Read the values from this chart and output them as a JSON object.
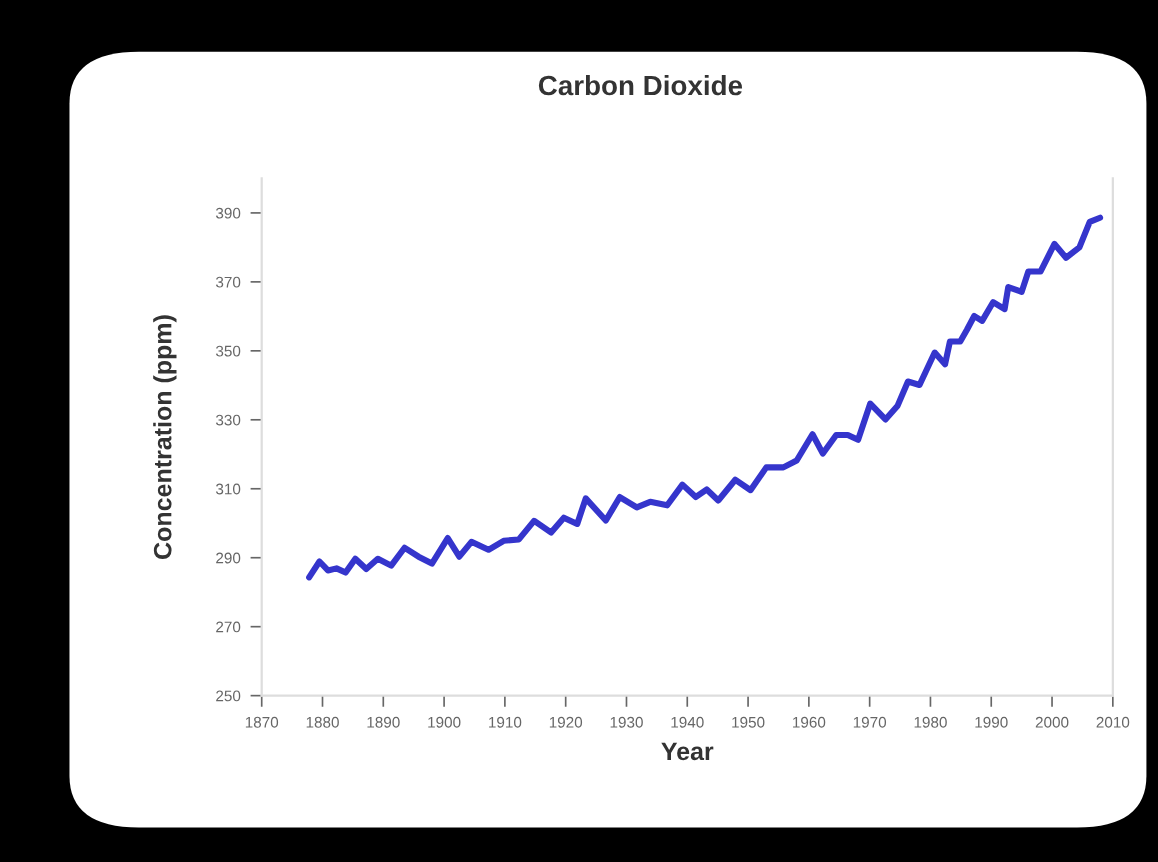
{
  "chart_data": {
    "type": "line",
    "title": "Carbon Dioxide",
    "xlabel": "Year",
    "ylabel": "Concentration (ppm)",
    "x": [
      1877.8,
      1879.5,
      1880.9,
      1882.3,
      1883.8,
      1885.4,
      1887.2,
      1889.1,
      1891.3,
      1893.5,
      1895.8,
      1898.0,
      1900.6,
      1902.5,
      1904.5,
      1907.3,
      1909.8,
      1912.3,
      1914.8,
      1917.6,
      1919.7,
      1921.9,
      1923.3,
      1926.6,
      1928.9,
      1931.7,
      1933.9,
      1936.7,
      1939.2,
      1941.4,
      1943.2,
      1945.1,
      1947.9,
      1950.4,
      1953.0,
      1955.8,
      1958.0,
      1960.6,
      1962.3,
      1964.5,
      1966.4,
      1968.1,
      1970.1,
      1972.6,
      1974.6,
      1976.3,
      1978.2,
      1980.7,
      1982.4,
      1983.2,
      1984.9,
      1986.0,
      1987.2,
      1988.5,
      1990.3,
      1992.2,
      1992.8,
      1995.0,
      1996.1,
      1998.1,
      2000.4,
      2002.3,
      2004.5,
      2006.2,
      2007.9
    ],
    "series": [
      {
        "color": "#3535cc",
        "values": [
          284.3,
          288.9,
          286.3,
          286.9,
          285.7,
          289.7,
          286.7,
          289.7,
          287.7,
          292.9,
          290.3,
          288.3,
          295.7,
          290.3,
          294.6,
          292.3,
          294.9,
          295.3,
          300.7,
          297.3,
          301.6,
          299.8,
          307.2,
          300.8,
          307.6,
          304.6,
          306.2,
          305.2,
          311.2,
          307.6,
          309.8,
          306.6,
          312.6,
          309.6,
          316.2,
          316.2,
          318.2,
          325.8,
          320.2,
          325.6,
          325.6,
          324.2,
          334.7,
          330.1,
          334.1,
          341.1,
          340.1,
          349.5,
          346.1,
          352.7,
          352.7,
          356.1,
          360.1,
          358.7,
          364.1,
          362.1,
          368.5,
          367.1,
          373.0,
          373.0,
          381.0,
          377.0,
          380.0,
          387.4,
          388.6
        ]
      }
    ],
    "xlim": [
      1870,
      2010
    ],
    "xticks": [
      1870,
      1880,
      1890,
      1900,
      1910,
      1920,
      1930,
      1940,
      1950,
      1960,
      1970,
      1980,
      1990,
      2000,
      2010
    ],
    "ylim": [
      250,
      400
    ],
    "yticks": [
      250,
      270,
      290,
      310,
      330,
      350,
      370,
      390
    ],
    "grid": false,
    "legend": false,
    "marker": "none",
    "line_style": "solid"
  }
}
